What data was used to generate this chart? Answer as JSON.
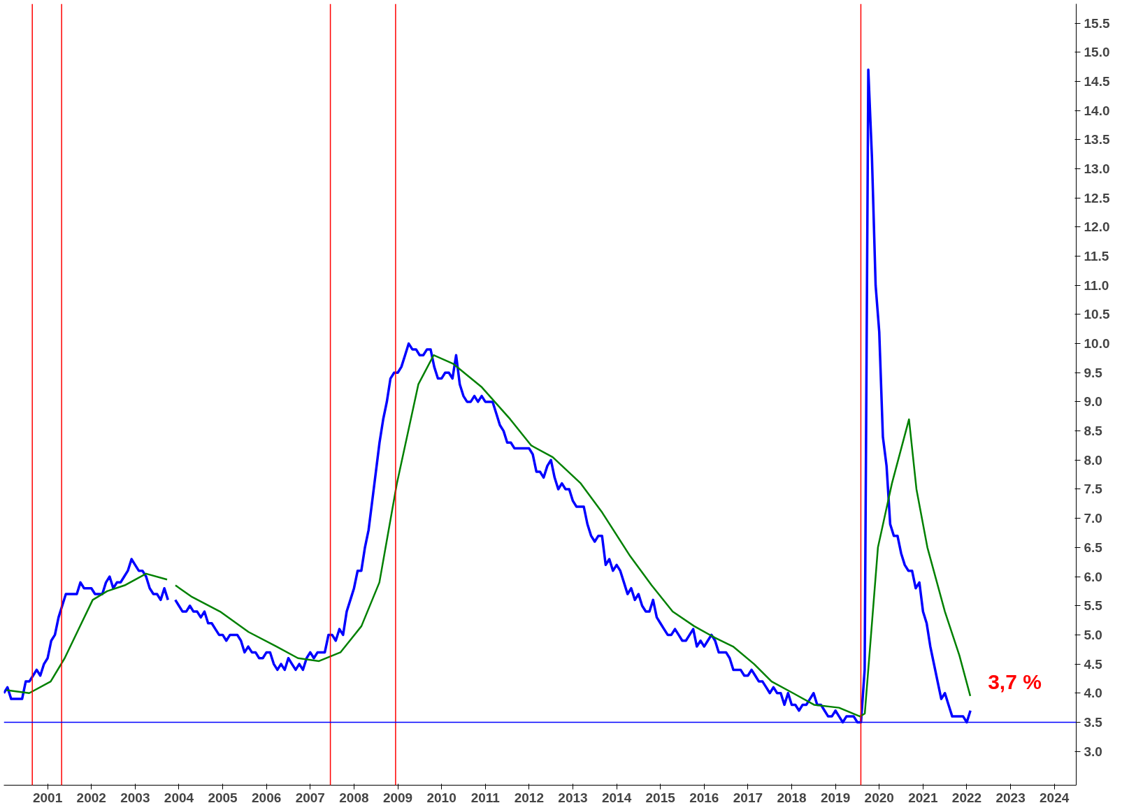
{
  "chart_data": {
    "type": "line",
    "xlim": [
      2000.5,
      2025.0
    ],
    "ylim": [
      2.42,
      15.83
    ],
    "xticks": [
      {
        "value": 2001.5,
        "label": "2001"
      },
      {
        "value": 2002.5,
        "label": "2002"
      },
      {
        "value": 2003.5,
        "label": "2003"
      },
      {
        "value": 2004.5,
        "label": "2004"
      },
      {
        "value": 2005.5,
        "label": "2005"
      },
      {
        "value": 2006.5,
        "label": "2006"
      },
      {
        "value": 2007.5,
        "label": "2007"
      },
      {
        "value": 2008.5,
        "label": "2008"
      },
      {
        "value": 2009.5,
        "label": "2009"
      },
      {
        "value": 2010.5,
        "label": "2010"
      },
      {
        "value": 2011.5,
        "label": "2011"
      },
      {
        "value": 2012.5,
        "label": "2012"
      },
      {
        "value": 2013.5,
        "label": "2013"
      },
      {
        "value": 2014.5,
        "label": "2014"
      },
      {
        "value": 2015.5,
        "label": "2015"
      },
      {
        "value": 2016.5,
        "label": "2016"
      },
      {
        "value": 2017.5,
        "label": "2017"
      },
      {
        "value": 2018.5,
        "label": "2018"
      },
      {
        "value": 2019.5,
        "label": "2019"
      },
      {
        "value": 2020.5,
        "label": "2020"
      },
      {
        "value": 2021.5,
        "label": "2021"
      },
      {
        "value": 2022.5,
        "label": "2022"
      },
      {
        "value": 2023.5,
        "label": "2023"
      },
      {
        "value": 2024.5,
        "label": "2024"
      }
    ],
    "yticks": [
      {
        "value": 3,
        "label": "3.0"
      },
      3.5,
      {
        "value": 4,
        "label": "4.0"
      },
      4.5,
      {
        "value": 5,
        "label": "5.0"
      },
      5.5,
      {
        "value": 6,
        "label": "6.0"
      },
      6.5,
      {
        "value": 7,
        "label": "7.0"
      },
      7.5,
      {
        "value": 8,
        "label": "8.0"
      },
      8.5,
      {
        "value": 9,
        "label": "9.0"
      },
      9.5,
      {
        "value": 10,
        "label": "10.0"
      },
      10.5,
      {
        "value": 11,
        "label": "11.0"
      },
      11.5,
      {
        "value": 12,
        "label": "12.0"
      },
      12.5,
      {
        "value": 13,
        "label": "13.0"
      },
      13.5,
      {
        "value": 14,
        "label": "14.0"
      },
      14.5,
      {
        "value": 15,
        "label": "15.0"
      },
      15.5
    ],
    "grid": false,
    "series": [
      {
        "color": "#0000ff",
        "x": [
          2000.5,
          2000.583,
          2000.667,
          2000.75,
          2000.833,
          2000.917,
          2001.0,
          2001.083,
          2001.167,
          2001.25,
          2001.333,
          2001.417,
          2001.5,
          2001.583,
          2001.667,
          2001.75,
          2001.833,
          2001.917,
          2002.0,
          2002.083,
          2002.167,
          2002.25,
          2002.333,
          2002.417,
          2002.5,
          2002.583,
          2002.667,
          2002.75,
          2002.833,
          2002.917,
          2003.0,
          2003.083,
          2003.167,
          2003.25,
          2003.333,
          2003.417,
          2003.5,
          2003.583,
          2003.667,
          2003.75,
          2003.833,
          2003.917,
          2004.0,
          2004.083,
          2004.167,
          2004.25,
          2004.333,
          2004.417,
          2004.5,
          2004.583,
          2004.667,
          2004.75,
          2004.833,
          2004.917,
          2005.0,
          2005.083,
          2005.167,
          2005.25,
          2005.333,
          2005.417,
          2005.5,
          2005.583,
          2005.667,
          2005.75,
          2005.833,
          2005.917,
          2006.0,
          2006.083,
          2006.167,
          2006.25,
          2006.333,
          2006.417,
          2006.5,
          2006.583,
          2006.667,
          2006.75,
          2006.833,
          2006.917,
          2007.0,
          2007.083,
          2007.167,
          2007.25,
          2007.333,
          2007.417,
          2007.5,
          2007.583,
          2007.667,
          2007.75,
          2007.833,
          2007.917,
          2008.0,
          2008.083,
          2008.167,
          2008.25,
          2008.333,
          2008.417,
          2008.5,
          2008.583,
          2008.667,
          2008.75,
          2008.833,
          2008.917,
          2009.0,
          2009.083,
          2009.167,
          2009.25,
          2009.333,
          2009.417,
          2009.5,
          2009.583,
          2009.667,
          2009.75,
          2009.833,
          2009.917,
          2010.0,
          2010.083,
          2010.167,
          2010.25,
          2010.333,
          2010.417,
          2010.5,
          2010.583,
          2010.667,
          2010.75,
          2010.833,
          2010.917,
          2011.0,
          2011.083,
          2011.167,
          2011.25,
          2011.333,
          2011.417,
          2011.5,
          2011.583,
          2011.667,
          2011.75,
          2011.833,
          2011.917,
          2012.0,
          2012.083,
          2012.167,
          2012.25,
          2012.333,
          2012.417,
          2012.5,
          2012.583,
          2012.667,
          2012.75,
          2012.833,
          2012.917,
          2013.0,
          2013.083,
          2013.167,
          2013.25,
          2013.333,
          2013.417,
          2013.5,
          2013.583,
          2013.667,
          2013.75,
          2013.833,
          2013.917,
          2014.0,
          2014.083,
          2014.167,
          2014.25,
          2014.333,
          2014.417,
          2014.5,
          2014.583,
          2014.667,
          2014.75,
          2014.833,
          2014.917,
          2015.0,
          2015.083,
          2015.167,
          2015.25,
          2015.333,
          2015.417,
          2015.5,
          2015.583,
          2015.667,
          2015.75,
          2015.833,
          2015.917,
          2016.0,
          2016.083,
          2016.167,
          2016.25,
          2016.333,
          2016.417,
          2016.5,
          2016.583,
          2016.667,
          2016.75,
          2016.833,
          2016.917,
          2017.0,
          2017.083,
          2017.167,
          2017.25,
          2017.333,
          2017.417,
          2017.5,
          2017.583,
          2017.667,
          2017.75,
          2017.833,
          2017.917,
          2018.0,
          2018.083,
          2018.167,
          2018.25,
          2018.333,
          2018.417,
          2018.5,
          2018.583,
          2018.667,
          2018.75,
          2018.833,
          2018.917,
          2019.0,
          2019.083,
          2019.167,
          2019.25,
          2019.333,
          2019.417,
          2019.5,
          2019.583,
          2019.667,
          2019.75,
          2019.833,
          2019.917,
          2020.0,
          2020.083,
          2020.167,
          2020.25,
          2020.333,
          2020.417,
          2020.5,
          2020.583,
          2020.667,
          2020.75,
          2020.833,
          2020.917,
          2021.0,
          2021.083,
          2021.167,
          2021.25,
          2021.333,
          2021.417,
          2021.5,
          2021.583,
          2021.667,
          2021.75,
          2021.833,
          2021.917,
          2022.0,
          2022.083,
          2022.167,
          2022.25,
          2022.333,
          2022.417,
          2022.5,
          2022.583
        ],
        "values": [
          4.0,
          4.1,
          3.9,
          3.9,
          3.9,
          3.9,
          4.2,
          4.2,
          4.3,
          4.4,
          4.3,
          4.5,
          4.6,
          4.9,
          5.0,
          5.3,
          5.5,
          5.7,
          5.7,
          5.7,
          5.7,
          5.9,
          5.8,
          5.8,
          5.8,
          5.7,
          5.7,
          5.7,
          5.9,
          6.0,
          5.8,
          5.9,
          5.9,
          6.0,
          6.1,
          6.3,
          6.2,
          6.1,
          6.1,
          6.0,
          5.8,
          5.7,
          5.7,
          5.6,
          5.8,
          5.6,
          null,
          5.6,
          5.5,
          5.4,
          5.4,
          5.5,
          5.4,
          5.4,
          5.3,
          5.4,
          5.2,
          5.2,
          5.1,
          5.0,
          5.0,
          4.9,
          5.0,
          5.0,
          5.0,
          4.9,
          4.7,
          4.8,
          4.7,
          4.7,
          4.6,
          4.6,
          4.7,
          4.7,
          4.5,
          4.4,
          4.5,
          4.4,
          4.6,
          4.5,
          4.4,
          4.5,
          4.4,
          4.6,
          4.7,
          4.6,
          4.7,
          4.7,
          4.7,
          5.0,
          5.0,
          4.9,
          5.1,
          5.0,
          5.4,
          5.6,
          5.8,
          6.1,
          6.1,
          6.5,
          6.8,
          7.3,
          7.8,
          8.3,
          8.7,
          9.0,
          9.4,
          9.5,
          9.5,
          9.6,
          9.8,
          10.0,
          9.9,
          9.9,
          9.8,
          9.8,
          9.9,
          9.9,
          9.6,
          9.4,
          9.4,
          9.5,
          9.5,
          9.4,
          9.8,
          9.3,
          9.1,
          9.0,
          9.0,
          9.1,
          9.0,
          9.1,
          9.0,
          9.0,
          9.0,
          8.8,
          8.6,
          8.5,
          8.3,
          8.3,
          8.2,
          8.2,
          8.2,
          8.2,
          8.2,
          8.1,
          7.8,
          7.8,
          7.7,
          7.9,
          8.0,
          7.7,
          7.5,
          7.6,
          7.5,
          7.5,
          7.3,
          7.2,
          7.2,
          7.2,
          6.9,
          6.7,
          6.6,
          6.7,
          6.7,
          6.2,
          6.3,
          6.1,
          6.2,
          6.1,
          5.9,
          5.7,
          5.8,
          5.6,
          5.7,
          5.5,
          5.4,
          5.4,
          5.6,
          5.3,
          5.2,
          5.1,
          5.0,
          5.0,
          5.1,
          5.0,
          4.9,
          4.9,
          5.0,
          5.1,
          4.8,
          4.9,
          4.8,
          4.9,
          5.0,
          4.9,
          4.7,
          4.7,
          4.7,
          4.6,
          4.4,
          4.4,
          4.4,
          4.3,
          4.3,
          4.4,
          4.3,
          4.2,
          4.2,
          4.1,
          4.0,
          4.1,
          4.0,
          4.0,
          3.8,
          4.0,
          3.8,
          3.8,
          3.7,
          3.8,
          3.8,
          3.9,
          4.0,
          3.8,
          3.8,
          3.7,
          3.6,
          3.6,
          3.7,
          3.6,
          3.5,
          3.6,
          3.6,
          3.6,
          3.5,
          3.5,
          4.4,
          14.7,
          13.2,
          11.0,
          10.2,
          8.4,
          7.9,
          6.9,
          6.7,
          6.7,
          6.4,
          6.2,
          6.1,
          6.1,
          5.8,
          5.9,
          5.4,
          5.2,
          4.8,
          4.5,
          4.2,
          3.9,
          4.0,
          3.8,
          3.6,
          3.6,
          3.6,
          3.6,
          3.5,
          3.7
        ]
      },
      {
        "color": "#008000",
        "x": [
          2000.56,
          2001.08,
          2001.57,
          2001.89,
          2002.21,
          2002.53,
          2002.86,
          2003.26,
          2003.75,
          2004.23,
          2004.33,
          2004.42,
          2004.8,
          2005.44,
          2006.09,
          2006.73,
          2007.22,
          2007.7,
          2008.19,
          2008.67,
          2009.08,
          2009.48,
          2009.97,
          2010.32,
          2010.77,
          2011.42,
          2012.07,
          2012.55,
          2013.04,
          2013.68,
          2014.17,
          2014.81,
          2015.3,
          2015.78,
          2016.27,
          2016.75,
          2017.16,
          2017.64,
          2018.04,
          2018.53,
          2019.01,
          2019.58,
          2020.06,
          2020.17,
          2020.47,
          2020.79,
          2021.18,
          2021.35,
          2021.6,
          2022.0,
          2022.33,
          2022.58
        ],
        "values": [
          4.05,
          4.0,
          4.2,
          4.6,
          5.1,
          5.6,
          5.75,
          5.85,
          6.05,
          5.95,
          null,
          5.85,
          5.65,
          5.4,
          5.05,
          4.8,
          4.6,
          4.55,
          4.7,
          5.15,
          5.9,
          7.6,
          9.3,
          9.8,
          9.65,
          9.25,
          8.7,
          8.25,
          8.05,
          7.6,
          7.1,
          6.35,
          5.85,
          5.4,
          5.15,
          4.95,
          4.8,
          4.5,
          4.2,
          4.0,
          3.8,
          3.75,
          3.6,
          3.65,
          6.5,
          7.6,
          8.7,
          7.5,
          6.5,
          5.4,
          4.65,
          3.95
        ]
      }
    ],
    "ref_lines": [
      {
        "axis": "x",
        "value": 2001.15,
        "color": "#ff0000"
      },
      {
        "axis": "x",
        "value": 2001.82,
        "color": "#ff0000"
      },
      {
        "axis": "x",
        "value": 2007.96,
        "color": "#ff0000"
      },
      {
        "axis": "x",
        "value": 2009.45,
        "color": "#ff0000"
      },
      {
        "axis": "x",
        "value": 2020.08,
        "color": "#ff0000"
      },
      {
        "axis": "y",
        "value": 3.5,
        "color": "#0000ff"
      }
    ],
    "annotations": [
      {
        "text": "3,7 %",
        "x": 2022.583,
        "y": 3.7
      }
    ]
  }
}
